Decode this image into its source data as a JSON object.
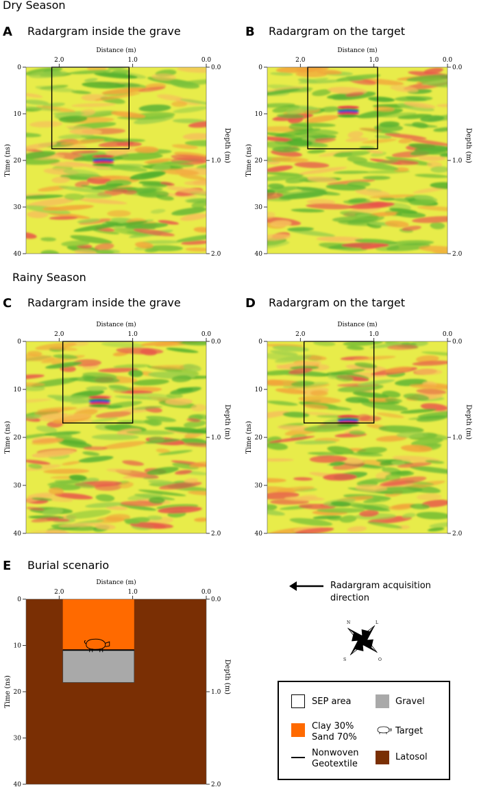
{
  "sections": {
    "dry": "Dry Season",
    "rainy": "Rainy Season"
  },
  "axis_text": {
    "distance": "Distance (m)",
    "time": "Time (ns)",
    "depth": "Depth (m)",
    "x_ticks": [
      "2.0",
      "1.0",
      "0.0"
    ],
    "time_ticks": [
      "0",
      "10",
      "20",
      "30",
      "40"
    ],
    "depth_ticks": [
      "0.0",
      "1.0",
      "2.0"
    ]
  },
  "panels": [
    {
      "letter": "A",
      "title": "Radargram inside the grave",
      "seed": 11,
      "sep_box": {
        "x_from_m": 2.1,
        "x_to_m": 1.05,
        "t_from_ns": 0,
        "t_to_ns": 17.5
      },
      "hyperbola": {
        "x_m": 1.4,
        "t_ns": 20
      }
    },
    {
      "letter": "B",
      "title": "Radargram on the target",
      "seed": 23,
      "sep_box": {
        "x_from_m": 1.9,
        "x_to_m": 0.95,
        "t_from_ns": 0,
        "t_to_ns": 17.5
      },
      "hyperbola": {
        "x_m": 1.35,
        "t_ns": 9.5
      }
    },
    {
      "letter": "C",
      "title": "Radargram inside the grave",
      "seed": 37,
      "sep_box": {
        "x_from_m": 1.95,
        "x_to_m": 1.0,
        "t_from_ns": 0,
        "t_to_ns": 17
      },
      "hyperbola": {
        "x_m": 1.45,
        "t_ns": 12.5
      }
    },
    {
      "letter": "D",
      "title": "Radargram on the target",
      "seed": 53,
      "sep_box": {
        "x_from_m": 1.95,
        "x_to_m": 1.0,
        "t_from_ns": 0,
        "t_to_ns": 17
      },
      "hyperbola": {
        "x_m": 1.35,
        "t_ns": 16.5
      }
    }
  ],
  "scenario": {
    "letter": "E",
    "title": "Burial scenario",
    "colors": {
      "latosol": "#7a2f04",
      "clay_sand": "#ff6a00",
      "gravel": "#a9a9a9"
    },
    "pit": {
      "x_from_m": 1.95,
      "x_to_m": 0.98,
      "clay_t_from_ns": 0,
      "clay_t_to_ns": 11,
      "gravel_t_from_ns": 11,
      "gravel_t_to_ns": 18
    }
  },
  "acquisition": {
    "line1": "Radargram acquisition",
    "line2": "direction"
  },
  "compass": {
    "n": "N",
    "s": "S",
    "l": "L",
    "o": "O"
  },
  "legend": {
    "sep_area": "SEP area",
    "gravel": "Gravel",
    "clay_line1": "Clay 30%",
    "clay_line2": "Sand 70%",
    "target": "Target",
    "nonwoven_line1": "Nonwoven",
    "nonwoven_line2": "Geotextile",
    "latosol": "Latosol"
  }
}
